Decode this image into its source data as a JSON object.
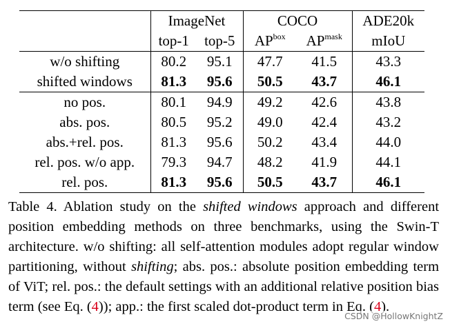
{
  "table": {
    "groups": [
      "ImageNet",
      "COCO",
      "ADE20k"
    ],
    "columns": [
      "top-1",
      "top-5",
      {
        "base": "AP",
        "sup": "box"
      },
      {
        "base": "AP",
        "sup": "mask"
      },
      "mIoU"
    ],
    "sections": [
      [
        {
          "label": "w/o shifting",
          "values": [
            "80.2",
            "95.1",
            "47.7",
            "41.5",
            "43.3"
          ],
          "bold": false
        },
        {
          "label": "shifted windows",
          "values": [
            "81.3",
            "95.6",
            "50.5",
            "43.7",
            "46.1"
          ],
          "bold": true
        }
      ],
      [
        {
          "label": "no pos.",
          "values": [
            "80.1",
            "94.9",
            "49.2",
            "42.6",
            "43.8"
          ],
          "bold": false
        },
        {
          "label": "abs. pos.",
          "values": [
            "80.5",
            "95.2",
            "49.0",
            "42.4",
            "43.2"
          ],
          "bold": false
        },
        {
          "label": "abs.+rel. pos.",
          "values": [
            "81.3",
            "95.6",
            "50.2",
            "43.4",
            "44.0"
          ],
          "bold": false
        },
        {
          "label": "rel. pos. w/o app.",
          "values": [
            "79.3",
            "94.7",
            "48.2",
            "41.9",
            "44.1"
          ],
          "bold": false
        },
        {
          "label": "rel. pos.",
          "values": [
            "81.3",
            "95.6",
            "50.5",
            "43.7",
            "46.1"
          ],
          "bold": true
        }
      ]
    ]
  },
  "caption": [
    {
      "text": "Table 4. Ablation study on the ",
      "style": "normal"
    },
    {
      "text": "shifted windows",
      "style": "italic"
    },
    {
      "text": " approach and different position embedding methods on three benchmarks, using the Swin-T architecture. w/o shifting: all self-attention modules adopt regular window partitioning, without ",
      "style": "normal"
    },
    {
      "text": "shifting",
      "style": "italic"
    },
    {
      "text": "; abs. pos.: absolute position embedding term of ViT; rel. pos.: the default settings with an additional relative position bias term (see Eq. (",
      "style": "normal"
    },
    {
      "text": "4",
      "style": "link"
    },
    {
      "text": ")); app.: the first scaled dot-product term in Eq. (",
      "style": "normal"
    },
    {
      "text": "4",
      "style": "link"
    },
    {
      "text": ").",
      "style": "normal"
    }
  ],
  "watermark": "CSDN @HollowKnightZ"
}
